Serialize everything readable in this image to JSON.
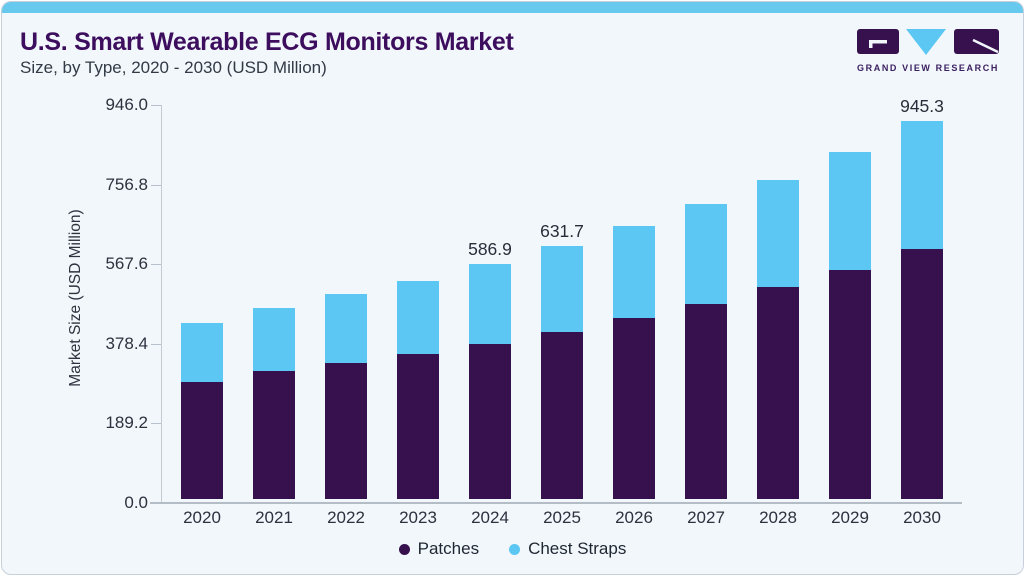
{
  "header": {
    "title": "U.S. Smart Wearable ECG Monitors Market",
    "subtitle": "Size, by Type, 2020 - 2030 (USD Million)",
    "logo_text": "GRAND VIEW RESEARCH"
  },
  "colors": {
    "patches": "#36114e",
    "chest_straps": "#5bc7f2",
    "top_strip": "#68c9ee",
    "title_purple": "#3d0e5e",
    "background": "#f2f7fb"
  },
  "chart_data": {
    "type": "bar",
    "stacked": true,
    "title": "U.S. Smart Wearable ECG Monitors Market Size, by Type, 2020 - 2030 (USD Million)",
    "ylabel": "Market Size (USD Million)",
    "xlabel": "",
    "ylim": [
      0,
      946.0
    ],
    "grid": false,
    "legend_position": "bottom",
    "categories": [
      "2020",
      "2021",
      "2022",
      "2023",
      "2024",
      "2025",
      "2026",
      "2027",
      "2028",
      "2029",
      "2030"
    ],
    "yticks": [
      "0.0",
      "189.2",
      "378.4",
      "567.6",
      "756.8",
      "946.0"
    ],
    "series": [
      {
        "name": "Patches",
        "color": "#36114e",
        "values": [
          293.0,
          319.0,
          340.0,
          362.5,
          387.5,
          416.9,
          452.5,
          487.7,
          529.3,
          573.4,
          625.0
        ]
      },
      {
        "name": "Chest Straps",
        "color": "#5bc7f2",
        "values": [
          147.0,
          157.8,
          171.8,
          181.8,
          199.4,
          214.8,
          229.3,
          249.8,
          268.2,
          295.1,
          320.3
        ]
      }
    ],
    "totals": [
      440.0,
      476.8,
      511.8,
      544.3,
      586.9,
      631.7,
      681.8,
      737.5,
      797.5,
      868.5,
      945.3
    ],
    "bar_labels": [
      "",
      "",
      "",
      "",
      "586.9",
      "631.7",
      "",
      "",
      "",
      "",
      "945.3"
    ]
  }
}
